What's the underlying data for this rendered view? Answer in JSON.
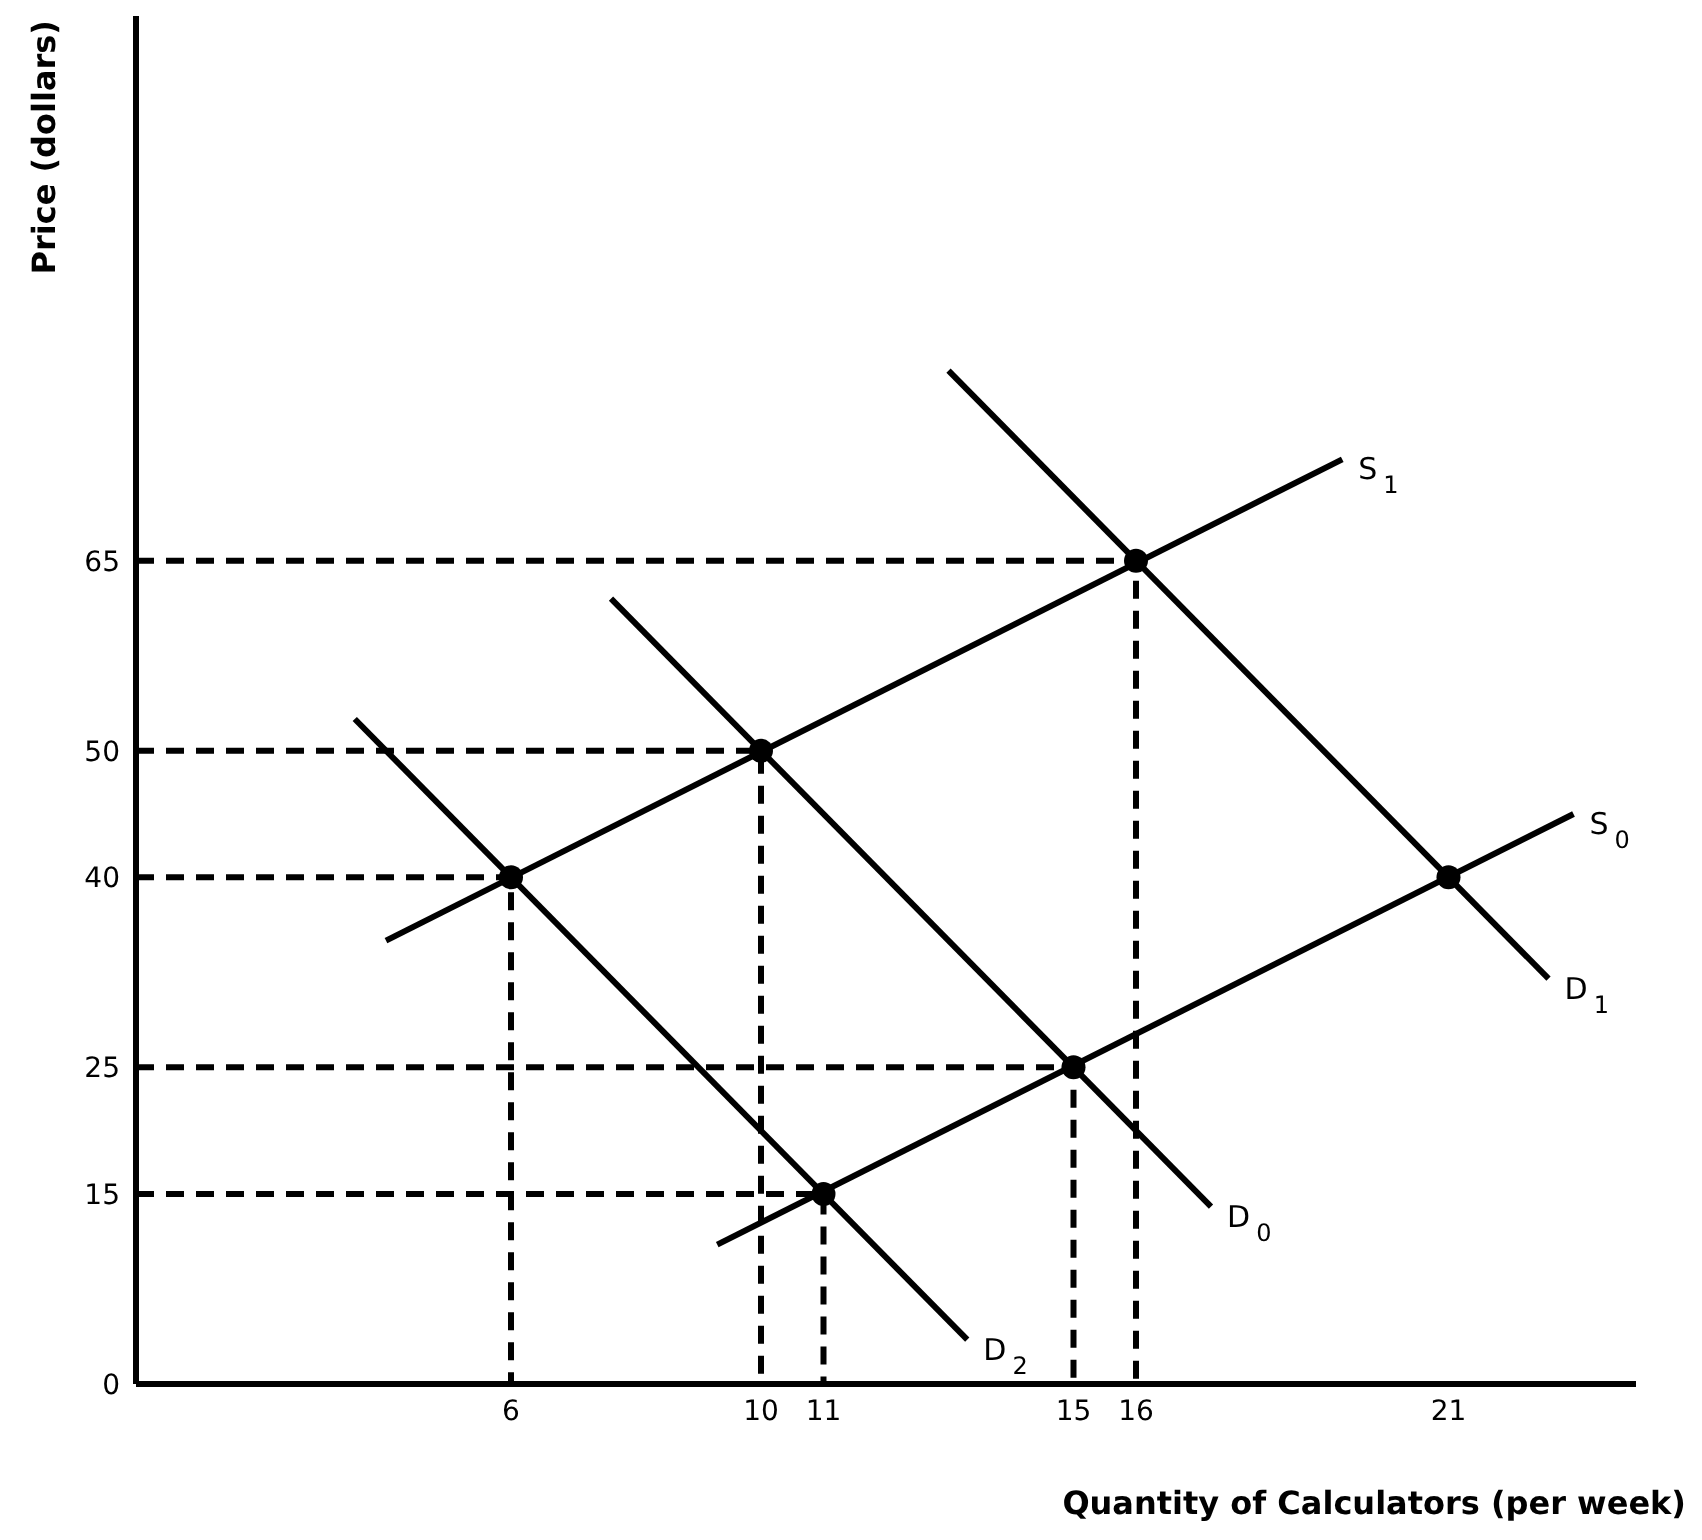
{
  "chart_data": {
    "type": "line",
    "xlabel": "Quantity of Calculators (per week)",
    "ylabel": "Price (dollars)",
    "xlim": [
      0,
      24
    ],
    "ylim": [
      0,
      108
    ],
    "xticks": [
      6,
      10,
      11,
      15,
      16,
      21
    ],
    "yticks": [
      0,
      15,
      25,
      40,
      50,
      65
    ],
    "series": [
      {
        "name": "S$_{1}$",
        "color": "#000000",
        "x": [
          4,
          19.3
        ],
        "values": [
          35,
          73
        ]
      },
      {
        "name": "S$_{0}$",
        "color": "#000000",
        "x": [
          9.3,
          23
        ],
        "values": [
          11,
          45
        ]
      },
      {
        "name": "D$_{2}$",
        "color": "#000000",
        "x": [
          3.5,
          13.3
        ],
        "values": [
          52.5,
          3.5
        ]
      },
      {
        "name": "D$_{0}$",
        "color": "#000000",
        "x": [
          7.6,
          17.2
        ],
        "values": [
          62,
          14
        ]
      },
      {
        "name": "D$_{1}$",
        "color": "#000000",
        "x": [
          13,
          22.6
        ],
        "values": [
          80,
          32
        ]
      },
      {
        "line_style": "dashed",
        "color": "#000000",
        "x": [
          0,
          6,
          6
        ],
        "values": [
          40,
          40,
          0
        ]
      },
      {
        "line_style": "dashed",
        "color": "#000000",
        "x": [
          0,
          10,
          10
        ],
        "values": [
          50,
          50,
          0
        ]
      },
      {
        "line_style": "dashed",
        "color": "#000000",
        "x": [
          0,
          16,
          16
        ],
        "values": [
          65,
          65,
          0
        ]
      },
      {
        "line_style": "dashed",
        "color": "#000000",
        "x": [
          0,
          15,
          15
        ],
        "values": [
          25,
          25,
          0
        ]
      },
      {
        "line_style": "dashed",
        "color": "#000000",
        "x": [
          0,
          11,
          11
        ],
        "values": [
          15,
          15,
          0
        ]
      },
      {
        "type": "scatter",
        "marker": "circle",
        "color": "#000000",
        "x": [
          6,
          10,
          16,
          21,
          15,
          11
        ],
        "values": [
          40,
          50,
          65,
          40,
          25,
          15
        ]
      }
    ]
  }
}
